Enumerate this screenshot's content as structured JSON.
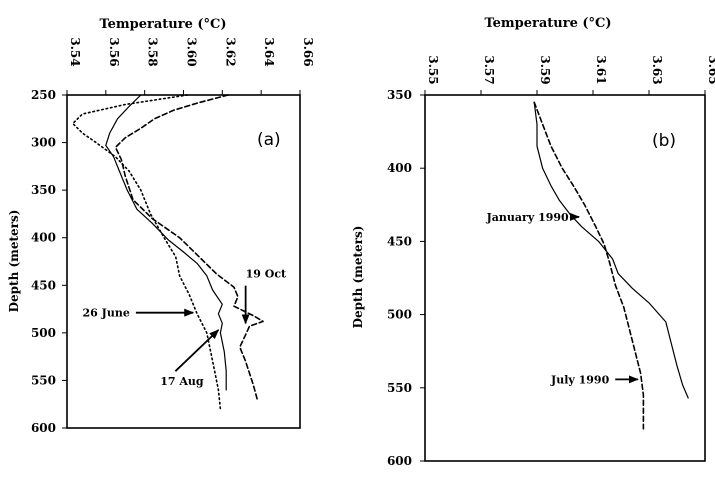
{
  "chart_data": [
    {
      "type": "line",
      "panel_label": "(a)",
      "title": "Temperature (°C)",
      "ylabel": "Depth (meters)",
      "xlim": [
        3.54,
        3.66
      ],
      "ylim": [
        250,
        600
      ],
      "x_ticks": [
        "3.54",
        "3.56",
        "3.58",
        "3.60",
        "3.62",
        "3.64",
        "3.66"
      ],
      "y_ticks": [
        "250",
        "300",
        "350",
        "400",
        "450",
        "500",
        "550",
        "600"
      ],
      "y_inverted": true,
      "x_axis_position": "top",
      "series": [
        {
          "style": "dotted",
          "points": [
            [
              3.602,
              250
            ],
            [
              3.57,
              260
            ],
            [
              3.548,
              270
            ],
            [
              3.543,
              280
            ],
            [
              3.548,
              290
            ],
            [
              3.555,
              300
            ],
            [
              3.565,
              315
            ],
            [
              3.572,
              330
            ],
            [
              3.578,
              350
            ],
            [
              3.583,
              375
            ],
            [
              3.59,
              400
            ],
            [
              3.596,
              420
            ],
            [
              3.598,
              440
            ],
            [
              3.603,
              460
            ],
            [
              3.607,
              480
            ],
            [
              3.612,
              500
            ],
            [
              3.614,
              520
            ],
            [
              3.616,
              540
            ],
            [
              3.618,
              560
            ],
            [
              3.619,
              580
            ]
          ]
        },
        {
          "style": "solid",
          "points": [
            [
              3.578,
              250
            ],
            [
              3.572,
              262
            ],
            [
              3.566,
              275
            ],
            [
              3.562,
              290
            ],
            [
              3.56,
              303
            ],
            [
              3.564,
              315
            ],
            [
              3.567,
              330
            ],
            [
              3.571,
              350
            ],
            [
              3.576,
              370
            ],
            [
              3.584,
              385
            ],
            [
              3.592,
              402
            ],
            [
              3.6,
              415
            ],
            [
              3.607,
              427
            ],
            [
              3.612,
              440
            ],
            [
              3.615,
              455
            ],
            [
              3.62,
              470
            ],
            [
              3.618,
              480
            ],
            [
              3.62,
              490
            ],
            [
              3.619,
              500
            ],
            [
              3.621,
              520
            ],
            [
              3.622,
              540
            ],
            [
              3.622,
              560
            ]
          ]
        },
        {
          "style": "dashed",
          "points": [
            [
              3.623,
              250
            ],
            [
              3.608,
              258
            ],
            [
              3.595,
              266
            ],
            [
              3.585,
              275
            ],
            [
              3.578,
              285
            ],
            [
              3.57,
              295
            ],
            [
              3.565,
              305
            ],
            [
              3.568,
              318
            ],
            [
              3.57,
              335
            ],
            [
              3.574,
              360
            ],
            [
              3.584,
              380
            ],
            [
              3.598,
              400
            ],
            [
              3.607,
              418
            ],
            [
              3.617,
              438
            ],
            [
              3.626,
              452
            ],
            [
              3.628,
              462
            ],
            [
              3.626,
              472
            ],
            [
              3.636,
              482
            ],
            [
              3.641,
              488
            ],
            [
              3.634,
              493
            ],
            [
              3.632,
              502
            ],
            [
              3.629,
              515
            ],
            [
              3.632,
              530
            ],
            [
              3.636,
              555
            ],
            [
              3.638,
              570
            ]
          ]
        }
      ],
      "annotations": [
        {
          "text": "19 Oct",
          "x": 3.632,
          "y": 442,
          "arrow_to": [
            3.632,
            490
          ]
        },
        {
          "text": "26 June",
          "x": 3.548,
          "y": 483,
          "arrow_to": [
            3.605,
            483
          ]
        },
        {
          "text": "17 Aug",
          "x": 3.588,
          "y": 555,
          "arrow_to": [
            3.618,
            497
          ]
        }
      ]
    },
    {
      "type": "line",
      "panel_label": "(b)",
      "title": "Temperature (°C)",
      "ylabel": "Depth (meters)",
      "xlim": [
        3.55,
        3.65
      ],
      "ylim": [
        350,
        600
      ],
      "x_ticks": [
        "3.55",
        "3.57",
        "3.59",
        "3.61",
        "3.63",
        "3.65"
      ],
      "y_ticks": [
        "350",
        "400",
        "450",
        "500",
        "550",
        "600"
      ],
      "y_inverted": true,
      "x_axis_position": "top",
      "series": [
        {
          "name": "January 1990",
          "style": "solid",
          "points": [
            [
              3.589,
              355
            ],
            [
              3.59,
              370
            ],
            [
              3.59,
              385
            ],
            [
              3.592,
              400
            ],
            [
              3.595,
              412
            ],
            [
              3.598,
              422
            ],
            [
              3.602,
              432
            ],
            [
              3.606,
              440
            ],
            [
              3.612,
              450
            ],
            [
              3.617,
              462
            ],
            [
              3.619,
              472
            ],
            [
              3.624,
              482
            ],
            [
              3.63,
              492
            ],
            [
              3.636,
              505
            ],
            [
              3.638,
              520
            ],
            [
              3.64,
              535
            ],
            [
              3.642,
              548
            ],
            [
              3.644,
              557
            ]
          ]
        },
        {
          "name": "July 1990",
          "style": "dashed",
          "points": [
            [
              3.589,
              355
            ],
            [
              3.592,
              370
            ],
            [
              3.595,
              385
            ],
            [
              3.599,
              400
            ],
            [
              3.603,
              412
            ],
            [
              3.607,
              425
            ],
            [
              3.611,
              440
            ],
            [
              3.614,
              452
            ],
            [
              3.616,
              465
            ],
            [
              3.618,
              480
            ],
            [
              3.621,
              495
            ],
            [
              3.623,
              510
            ],
            [
              3.625,
              525
            ],
            [
              3.627,
              540
            ],
            [
              3.628,
              555
            ],
            [
              3.628,
              568
            ],
            [
              3.628,
              578
            ]
          ]
        }
      ],
      "annotations": [
        {
          "text": "January 1990",
          "x": 3.572,
          "y": 436,
          "arrow_to": [
            3.605,
            436
          ]
        },
        {
          "text": "July 1990",
          "x": 3.595,
          "y": 547,
          "arrow_to": [
            3.626,
            547
          ]
        }
      ]
    }
  ]
}
